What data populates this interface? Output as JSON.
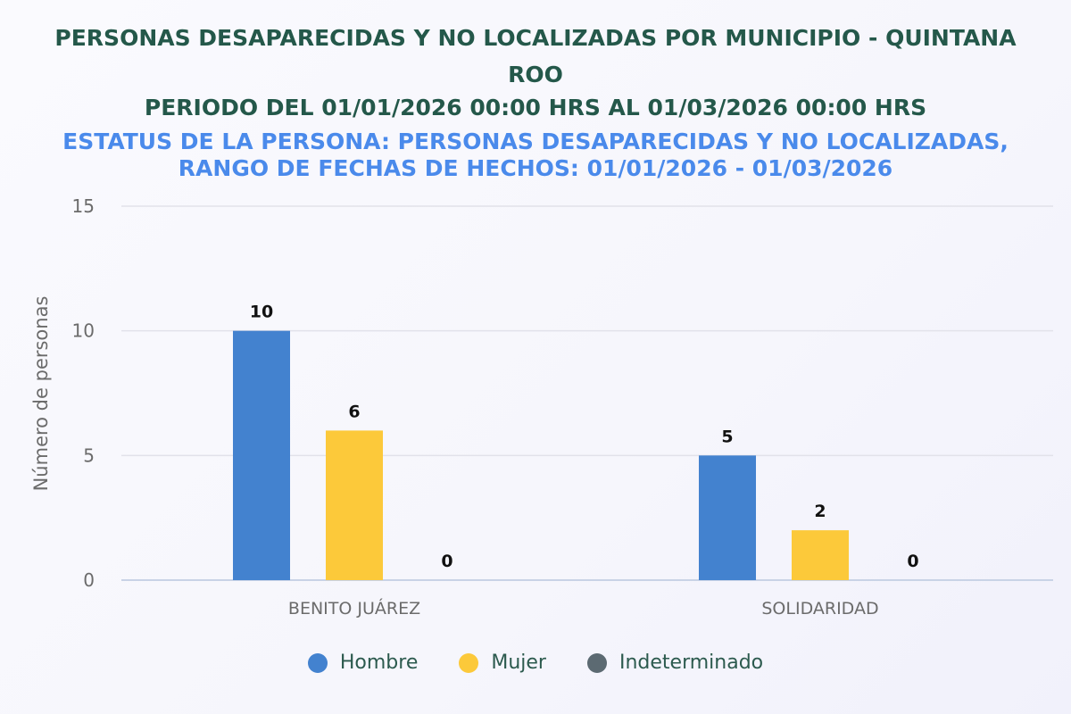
{
  "title_line1": "PERSONAS DESAPARECIDAS Y NO LOCALIZADAS POR MUNICIPIO - QUINTANA ROO",
  "title_line2": "PERIODO DEL 01/01/2026 00:00 HRS AL 01/03/2026 00:00 HRS",
  "subtitle_line1": "ESTATUS DE LA PERSONA: PERSONAS DESAPARECIDAS Y NO LOCALIZADAS,",
  "subtitle_line2": "RANGO DE FECHAS DE HECHOS: 01/01/2026 - 01/03/2026",
  "chart_data": {
    "type": "bar",
    "categories": [
      "BENITO JUÁREZ",
      "SOLIDARIDAD"
    ],
    "series": [
      {
        "name": "Hombre",
        "values": [
          10,
          5
        ],
        "color": "#4382cf"
      },
      {
        "name": "Mujer",
        "values": [
          6,
          2
        ],
        "color": "#fcc93a"
      },
      {
        "name": "Indeterminado",
        "values": [
          0,
          0
        ],
        "color": "#5c6a72"
      }
    ],
    "ylabel": "Número de personas",
    "xlabel": "",
    "ylim": [
      0,
      15
    ],
    "yticks": [
      "0",
      "5",
      "10",
      "15"
    ],
    "grid": true,
    "legend_position": "bottom"
  }
}
